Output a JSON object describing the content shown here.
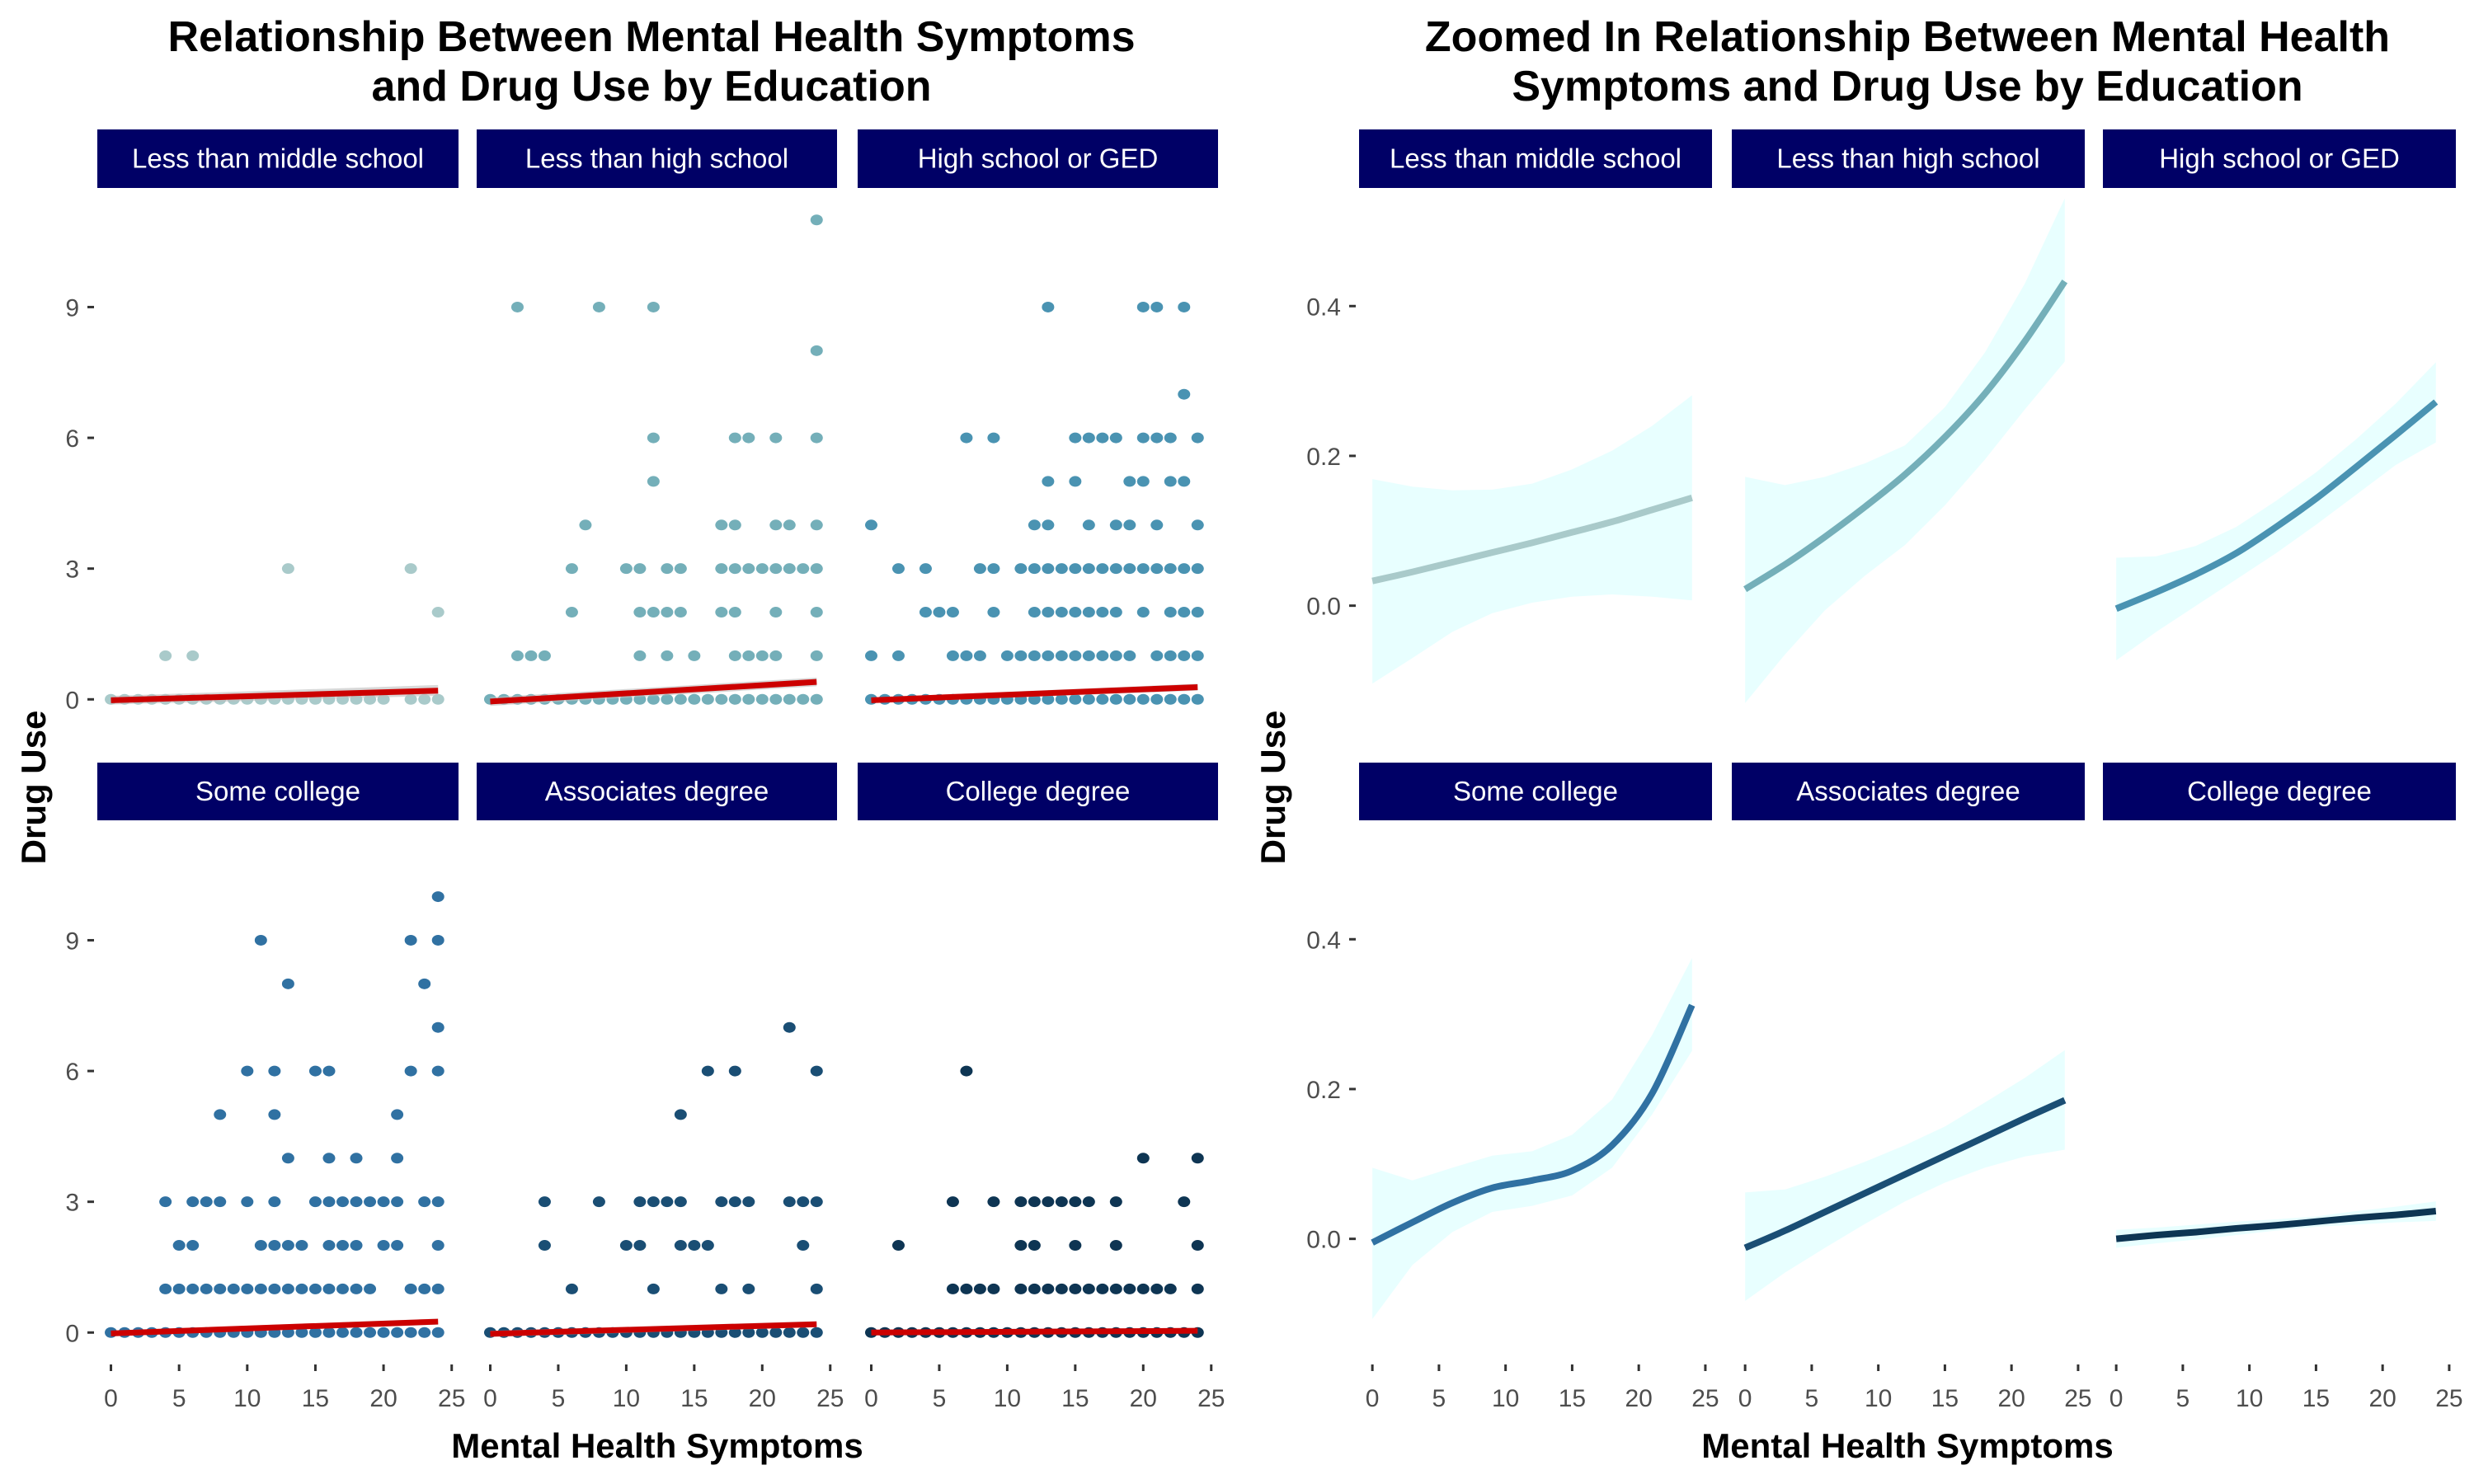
{
  "colors": {
    "strip_bg": "#000066",
    "strip_text": "#ffffff",
    "fit_line": "#CC0000",
    "fit_band": "#BEBEBE",
    "ribbon": "#E0FFFF",
    "panel_colors": [
      "#A9CACA",
      "#74AFB9",
      "#4A93B2",
      "#3071A2",
      "#1A4E74",
      "#0E3553"
    ]
  },
  "chart_data": [
    {
      "type": "scatter",
      "title_lines": [
        "Relationship Between Mental Health Symptoms",
        "and Drug Use by Education"
      ],
      "xlabel": "Mental Health Symptoms",
      "ylabel": "Drug Use",
      "xlim": [
        -1,
        25.5
      ],
      "ylim": [
        -0.6,
        11.6
      ],
      "xticks": [
        0,
        5,
        10,
        15,
        20,
        25
      ],
      "yticks": [
        0,
        3,
        6,
        9
      ],
      "grid": false,
      "overlay": "linear fit (red) with standard-error band",
      "panels": [
        {
          "label": "Less than middle school",
          "points": {
            "0": [
              0,
              1,
              2,
              3,
              4,
              5,
              6,
              7,
              8,
              9,
              10,
              11,
              12,
              13,
              14,
              15,
              16,
              17,
              18,
              19,
              20,
              22,
              23,
              24
            ],
            "1": [
              4,
              6
            ],
            "2": [
              24
            ],
            "3": [
              13,
              22
            ]
          },
          "fit": {
            "x": [
              0,
              24
            ],
            "y": [
              -0.02,
              0.2
            ],
            "se_low": [
              -0.12,
              0.08
            ],
            "se_high": [
              0.08,
              0.33
            ]
          }
        },
        {
          "label": "Less than high school",
          "points": {
            "0": [
              0,
              1,
              2,
              3,
              4,
              5,
              6,
              7,
              8,
              9,
              10,
              11,
              12,
              13,
              14,
              15,
              16,
              17,
              18,
              19,
              20,
              21,
              22,
              23,
              24
            ],
            "1": [
              2,
              3,
              4,
              11,
              13,
              15,
              18,
              19,
              20,
              21,
              24
            ],
            "2": [
              6,
              11,
              12,
              13,
              14,
              17,
              18,
              21,
              24
            ],
            "3": [
              6,
              10,
              11,
              13,
              14,
              17,
              18,
              19,
              20,
              21,
              22,
              23,
              24
            ],
            "4": [
              7,
              17,
              18,
              21,
              22,
              24
            ],
            "5": [
              12
            ],
            "6": [
              12,
              18,
              19,
              21,
              24
            ],
            "8": [
              24
            ],
            "9": [
              2,
              8,
              12
            ],
            "11": [
              24
            ]
          },
          "fit": {
            "x": [
              0,
              24
            ],
            "y": [
              -0.05,
              0.4
            ],
            "se_low": [
              -0.15,
              0.3
            ],
            "se_high": [
              0.05,
              0.5
            ]
          }
        },
        {
          "label": "High school or GED",
          "points": {
            "0": [
              0,
              1,
              2,
              3,
              4,
              5,
              6,
              7,
              8,
              9,
              10,
              11,
              12,
              13,
              14,
              15,
              16,
              17,
              18,
              19,
              20,
              21,
              22,
              23,
              24
            ],
            "1": [
              0,
              2,
              6,
              7,
              8,
              10,
              11,
              12,
              13,
              14,
              15,
              16,
              17,
              18,
              19,
              21,
              22,
              23,
              24
            ],
            "2": [
              4,
              5,
              6,
              9,
              12,
              13,
              14,
              15,
              16,
              17,
              18,
              20,
              22,
              23,
              24
            ],
            "3": [
              2,
              4,
              8,
              9,
              11,
              12,
              13,
              14,
              15,
              16,
              17,
              18,
              19,
              20,
              21,
              22,
              23,
              24
            ],
            "4": [
              0,
              12,
              13,
              16,
              18,
              19,
              21,
              24
            ],
            "5": [
              13,
              15,
              19,
              20,
              22,
              23
            ],
            "6": [
              7,
              9,
              15,
              16,
              17,
              18,
              20,
              21,
              22,
              24
            ],
            "7": [
              23
            ],
            "9": [
              13,
              20,
              21,
              23
            ]
          },
          "fit": {
            "x": [
              0,
              24
            ],
            "y": [
              -0.02,
              0.28
            ],
            "se_low": [
              -0.08,
              0.2
            ],
            "se_high": [
              0.04,
              0.36
            ]
          }
        },
        {
          "label": "Some college",
          "points": {
            "0": [
              0,
              1,
              2,
              3,
              4,
              5,
              6,
              7,
              8,
              9,
              10,
              11,
              12,
              13,
              14,
              15,
              16,
              17,
              18,
              19,
              20,
              21,
              22,
              23,
              24
            ],
            "1": [
              4,
              5,
              6,
              7,
              8,
              9,
              10,
              11,
              12,
              13,
              14,
              15,
              16,
              17,
              18,
              19,
              22,
              23,
              24
            ],
            "2": [
              5,
              6,
              11,
              12,
              13,
              14,
              16,
              17,
              18,
              20,
              21,
              24
            ],
            "3": [
              4,
              6,
              7,
              8,
              10,
              12,
              15,
              16,
              17,
              18,
              19,
              20,
              21,
              23,
              24
            ],
            "4": [
              13,
              16,
              18,
              21
            ],
            "5": [
              8,
              12,
              21
            ],
            "6": [
              10,
              12,
              15,
              16,
              22,
              24
            ],
            "7": [
              24
            ],
            "8": [
              13,
              23
            ],
            "9": [
              11,
              22,
              24
            ],
            "10": [
              24
            ]
          },
          "fit": {
            "x": [
              0,
              24
            ],
            "y": [
              -0.02,
              0.25
            ],
            "se_low": [
              -0.08,
              0.18
            ],
            "se_high": [
              0.04,
              0.32
            ]
          }
        },
        {
          "label": "Associates degree",
          "points": {
            "0": [
              0,
              1,
              2,
              3,
              4,
              5,
              6,
              7,
              8,
              9,
              10,
              11,
              12,
              13,
              14,
              15,
              16,
              17,
              18,
              19,
              20,
              21,
              22,
              23,
              24
            ],
            "1": [
              6,
              12,
              17,
              19,
              24
            ],
            "2": [
              4,
              10,
              11,
              14,
              15,
              16,
              23
            ],
            "3": [
              4,
              8,
              11,
              12,
              13,
              14,
              17,
              18,
              19,
              22,
              23,
              24
            ],
            "5": [
              14
            ],
            "6": [
              16,
              18,
              24
            ],
            "7": [
              22
            ]
          },
          "fit": {
            "x": [
              0,
              24
            ],
            "y": [
              -0.03,
              0.19
            ],
            "se_low": [
              -0.1,
              0.12
            ],
            "se_high": [
              0.04,
              0.26
            ]
          }
        },
        {
          "label": "College degree",
          "points": {
            "0": [
              0,
              1,
              2,
              3,
              4,
              5,
              6,
              7,
              8,
              9,
              10,
              11,
              12,
              13,
              14,
              15,
              16,
              17,
              18,
              19,
              20,
              21,
              22,
              23,
              24
            ],
            "1": [
              6,
              7,
              8,
              9,
              11,
              12,
              13,
              14,
              15,
              16,
              17,
              18,
              19,
              20,
              21,
              22,
              24
            ],
            "2": [
              2,
              11,
              12,
              15,
              18,
              24
            ],
            "3": [
              6,
              9,
              11,
              12,
              13,
              14,
              15,
              16,
              18,
              23
            ],
            "4": [
              20,
              24
            ],
            "6": [
              7
            ]
          },
          "fit": {
            "x": [
              0,
              24
            ],
            "y": [
              0.0,
              0.04
            ],
            "se_low": [
              -0.03,
              0.01
            ],
            "se_high": [
              0.03,
              0.07
            ]
          }
        }
      ]
    },
    {
      "type": "line",
      "title_lines": [
        "Zoomed In Relationship Between Mental Health",
        "Symptoms and Drug Use by Education"
      ],
      "xlabel": "Mental Health Symptoms",
      "ylabel": "Drug Use",
      "xlim": [
        -1,
        25.5
      ],
      "ylim": [
        -0.16,
        0.55
      ],
      "xticks": [
        0,
        5,
        10,
        15,
        20,
        25
      ],
      "yticks": [
        0.0,
        0.2,
        0.4
      ],
      "ytick_labels": [
        "0.0",
        "0.2",
        "0.4"
      ],
      "grid": false,
      "overlay": "smoothed fit with confidence ribbon",
      "panels": [
        {
          "label": "Less than middle school",
          "x": [
            0,
            3,
            6,
            9,
            12,
            15,
            18,
            21,
            24
          ],
          "y": [
            0.033,
            0.045,
            0.058,
            0.071,
            0.084,
            0.098,
            0.112,
            0.128,
            0.144
          ],
          "low": [
            -0.104,
            -0.07,
            -0.035,
            -0.01,
            0.004,
            0.012,
            0.015,
            0.012,
            0.007
          ],
          "high": [
            0.169,
            0.159,
            0.154,
            0.155,
            0.163,
            0.182,
            0.207,
            0.24,
            0.281
          ]
        },
        {
          "label": "Less than high school",
          "x": [
            0,
            3,
            6,
            9,
            12,
            15,
            18,
            21,
            24
          ],
          "y": [
            0.022,
            0.055,
            0.092,
            0.132,
            0.175,
            0.225,
            0.283,
            0.353,
            0.433
          ],
          "low": [
            -0.13,
            -0.065,
            -0.006,
            0.04,
            0.081,
            0.134,
            0.195,
            0.262,
            0.326
          ],
          "high": [
            0.172,
            0.161,
            0.172,
            0.19,
            0.214,
            0.265,
            0.338,
            0.43,
            0.544
          ]
        },
        {
          "label": "High school or GED",
          "x": [
            0,
            3,
            6,
            9,
            12,
            15,
            18,
            21,
            24
          ],
          "y": [
            -0.004,
            0.018,
            0.042,
            0.07,
            0.105,
            0.143,
            0.185,
            0.228,
            0.272
          ],
          "low": [
            -0.073,
            -0.035,
            0.0,
            0.035,
            0.07,
            0.108,
            0.148,
            0.188,
            0.218
          ],
          "high": [
            0.064,
            0.066,
            0.08,
            0.105,
            0.14,
            0.178,
            0.222,
            0.27,
            0.325
          ]
        },
        {
          "label": "Some college",
          "x": [
            0,
            3,
            6,
            9,
            12,
            15,
            18,
            21,
            24
          ],
          "y": [
            -0.005,
            0.022,
            0.048,
            0.068,
            0.078,
            0.091,
            0.125,
            0.194,
            0.312
          ],
          "low": [
            -0.107,
            -0.035,
            0.009,
            0.036,
            0.044,
            0.058,
            0.095,
            0.166,
            0.251
          ],
          "high": [
            0.095,
            0.078,
            0.095,
            0.111,
            0.117,
            0.139,
            0.186,
            0.272,
            0.375
          ]
        },
        {
          "label": "Associates degree",
          "x": [
            0,
            3,
            6,
            9,
            12,
            15,
            18,
            21,
            24
          ],
          "y": [
            -0.012,
            0.011,
            0.036,
            0.061,
            0.086,
            0.111,
            0.136,
            0.161,
            0.185
          ],
          "low": [
            -0.083,
            -0.045,
            -0.012,
            0.02,
            0.05,
            0.075,
            0.095,
            0.11,
            0.119
          ],
          "high": [
            0.062,
            0.066,
            0.083,
            0.103,
            0.125,
            0.15,
            0.182,
            0.215,
            0.252
          ]
        },
        {
          "label": "College degree",
          "x": [
            0,
            3,
            6,
            9,
            12,
            15,
            18,
            21,
            24
          ],
          "y": [
            0.0,
            0.005,
            0.009,
            0.014,
            0.018,
            0.023,
            0.028,
            0.032,
            0.037
          ],
          "low": [
            -0.012,
            -0.006,
            -0.001,
            0.005,
            0.011,
            0.016,
            0.019,
            0.022,
            0.024
          ],
          "high": [
            0.012,
            0.015,
            0.019,
            0.023,
            0.026,
            0.03,
            0.037,
            0.043,
            0.05
          ]
        }
      ]
    }
  ]
}
